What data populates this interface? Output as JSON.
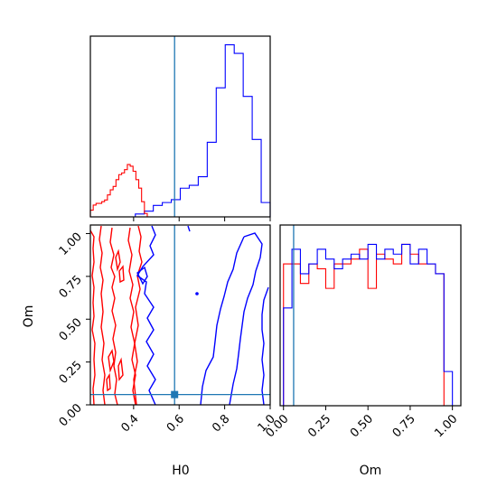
{
  "chart_data": {
    "type": "corner",
    "parameters": [
      "H0",
      "Om"
    ],
    "truths": {
      "H0": 0.58,
      "Om": 0.06
    },
    "colors": {
      "blue": "#0000ff",
      "red": "#ff0000",
      "truth": "#1f77b4"
    },
    "panels": [
      {
        "id": "H0-marginal",
        "type": "histogram",
        "x_param": "H0",
        "xlim": [
          0.21,
          1.0
        ],
        "show_tick_labels": false,
        "series": [
          {
            "color": "#0000ff",
            "bin_edges": [
              0.21,
              0.2495,
              0.289,
              0.3285,
              0.368,
              0.4075,
              0.447,
              0.4865,
              0.526,
              0.5655,
              0.605,
              0.6445,
              0.684,
              0.7235,
              0.763,
              0.8025,
              0.842,
              0.8815,
              0.921,
              0.9605,
              1.0
            ],
            "counts": [
              0,
              0,
              0,
              0,
              0,
              1,
              2,
              4,
              5,
              6,
              10,
              11,
              14,
              26,
              45,
              60,
              57,
              42,
              27,
              5
            ]
          },
          {
            "color": "#ff0000",
            "bin_edges": [
              0.21,
              0.2225,
              0.235,
              0.2475,
              0.26,
              0.2725,
              0.285,
              0.2975,
              0.31,
              0.3225,
              0.335,
              0.3475,
              0.36,
              0.3725,
              0.385,
              0.3975,
              0.41,
              0.4225,
              0.435,
              0.4475,
              0.46
            ],
            "counts": [
              4,
              7,
              8,
              8,
              9,
              10,
              13,
              16,
              18,
              22,
              25,
              26,
              28,
              31,
              30,
              27,
              22,
              17,
              9,
              2
            ]
          }
        ]
      },
      {
        "id": "H0-Om-contours",
        "type": "contour",
        "x_param": "H0",
        "y_param": "Om",
        "xlim": [
          0.21,
          1.0
        ],
        "ylim": [
          0.0,
          1.05
        ],
        "yticks": [
          "0.00",
          "0.25",
          "0.50",
          "0.75",
          "1.00"
        ],
        "xticks": [
          "0.4",
          "0.6",
          "0.8",
          "1.0"
        ],
        "xlabel": "H0",
        "ylabel": "Om"
      },
      {
        "id": "Om-marginal",
        "type": "histogram",
        "x_param": "Om",
        "xlim": [
          -0.02,
          1.05
        ],
        "xticks": [
          "0.00",
          "0.25",
          "0.50",
          "0.75",
          "1.00"
        ],
        "xlabel": "Om",
        "series": [
          {
            "color": "#0000ff",
            "bin_edges": [
              0.0,
              0.05,
              0.1,
              0.15,
              0.2,
              0.25,
              0.3,
              0.35,
              0.4,
              0.45,
              0.5,
              0.55,
              0.6,
              0.65,
              0.7,
              0.75,
              0.8,
              0.85,
              0.9,
              0.95,
              1.0
            ],
            "counts": [
              20,
              32,
              27,
              29,
              32,
              30,
              28,
              30,
              31,
              30,
              33,
              30,
              32,
              31,
              33,
              29,
              32,
              29,
              27,
              7
            ]
          },
          {
            "color": "#ff0000",
            "bin_edges": [
              0.0,
              0.05,
              0.1,
              0.15,
              0.2,
              0.25,
              0.3,
              0.35,
              0.4,
              0.45,
              0.5,
              0.55,
              0.6,
              0.65,
              0.7,
              0.75,
              0.8,
              0.85,
              0.9,
              0.95,
              1.0
            ],
            "counts": [
              29,
              29,
              25,
              29,
              28,
              24,
              29,
              29,
              30,
              32,
              24,
              31,
              30,
              29,
              33,
              31,
              29,
              29,
              27,
              0
            ]
          }
        ]
      }
    ]
  }
}
